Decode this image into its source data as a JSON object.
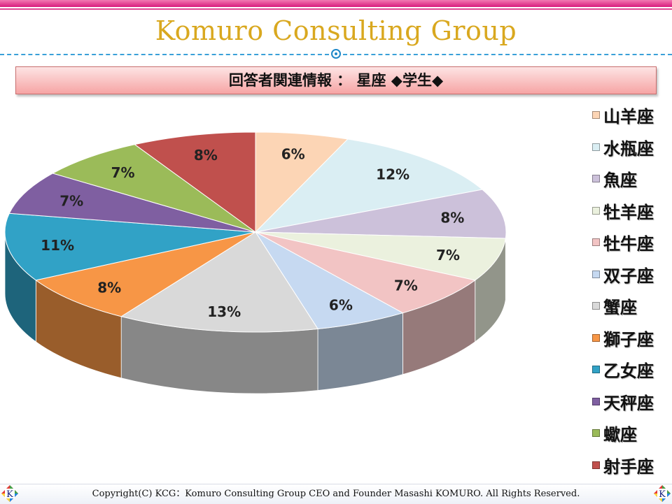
{
  "header": {
    "brand": "Komuro Consulting Group"
  },
  "heading": {
    "text": "回答者関連情報 ： 星座 ◆学生◆"
  },
  "chart_data": {
    "type": "pie",
    "categories": [
      "山羊座",
      "水瓶座",
      "魚座",
      "牡羊座",
      "牡牛座",
      "双子座",
      "蟹座",
      "獅子座",
      "乙女座",
      "天秤座",
      "蠍座",
      "射手座"
    ],
    "values": [
      6,
      12,
      8,
      7,
      7,
      6,
      13,
      8,
      11,
      7,
      7,
      8
    ],
    "labels": [
      "6%",
      "12%",
      "8%",
      "7%",
      "7%",
      "6%",
      "13%",
      "8%",
      "11%",
      "7%",
      "7%",
      "8%"
    ],
    "colors": [
      "#fcd5b5",
      "#daeef3",
      "#ccc1da",
      "#ebf1de",
      "#f2c4c4",
      "#c6d9f1",
      "#d9d9d9",
      "#f79646",
      "#31a2c6",
      "#7f5fa1",
      "#9bbb59",
      "#c0504d"
    ],
    "legend_position": "right",
    "start_angle_deg": -90,
    "direction": "clockwise",
    "style": "3d"
  },
  "footer": {
    "copyright": "Copyright(C) KCG：Komuro Consulting Group CEO and Founder Masashi KOMURO. All Rights Reserved."
  },
  "logo": {
    "letter": "K"
  }
}
